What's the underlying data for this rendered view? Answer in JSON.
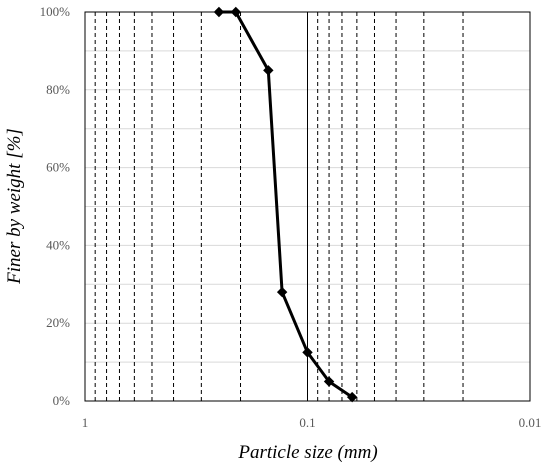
{
  "chart_data": {
    "type": "line",
    "title": "",
    "xlabel": "Particle size (mm)",
    "ylabel": "Finer by weight [%]",
    "x_scale": "log",
    "x_reversed": true,
    "xlim": [
      1,
      0.01
    ],
    "ylim": [
      0,
      100
    ],
    "x_ticks": [
      1,
      0.1,
      0.01
    ],
    "x_tick_labels": [
      "1",
      "0.1",
      "0.01"
    ],
    "y_ticks": [
      0,
      20,
      40,
      60,
      80,
      100
    ],
    "y_tick_labels": [
      "0%",
      "20%",
      "40%",
      "60%",
      "80%",
      "100%"
    ],
    "y_minor_gridlines": [
      10,
      30,
      50,
      70,
      90
    ],
    "x_minor_gridlines": [
      0.9,
      0.8,
      0.7,
      0.6,
      0.5,
      0.4,
      0.3,
      0.2,
      0.09,
      0.08,
      0.07,
      0.06,
      0.05,
      0.04,
      0.03,
      0.02
    ],
    "grid": true,
    "legend": "none",
    "series": [
      {
        "x": [
          0.25,
          0.21,
          0.15,
          0.13,
          0.1,
          0.08,
          0.063
        ],
        "y": [
          100,
          100,
          85,
          28,
          12.5,
          5,
          1
        ],
        "color": "#000000",
        "marker": "diamond"
      }
    ]
  }
}
